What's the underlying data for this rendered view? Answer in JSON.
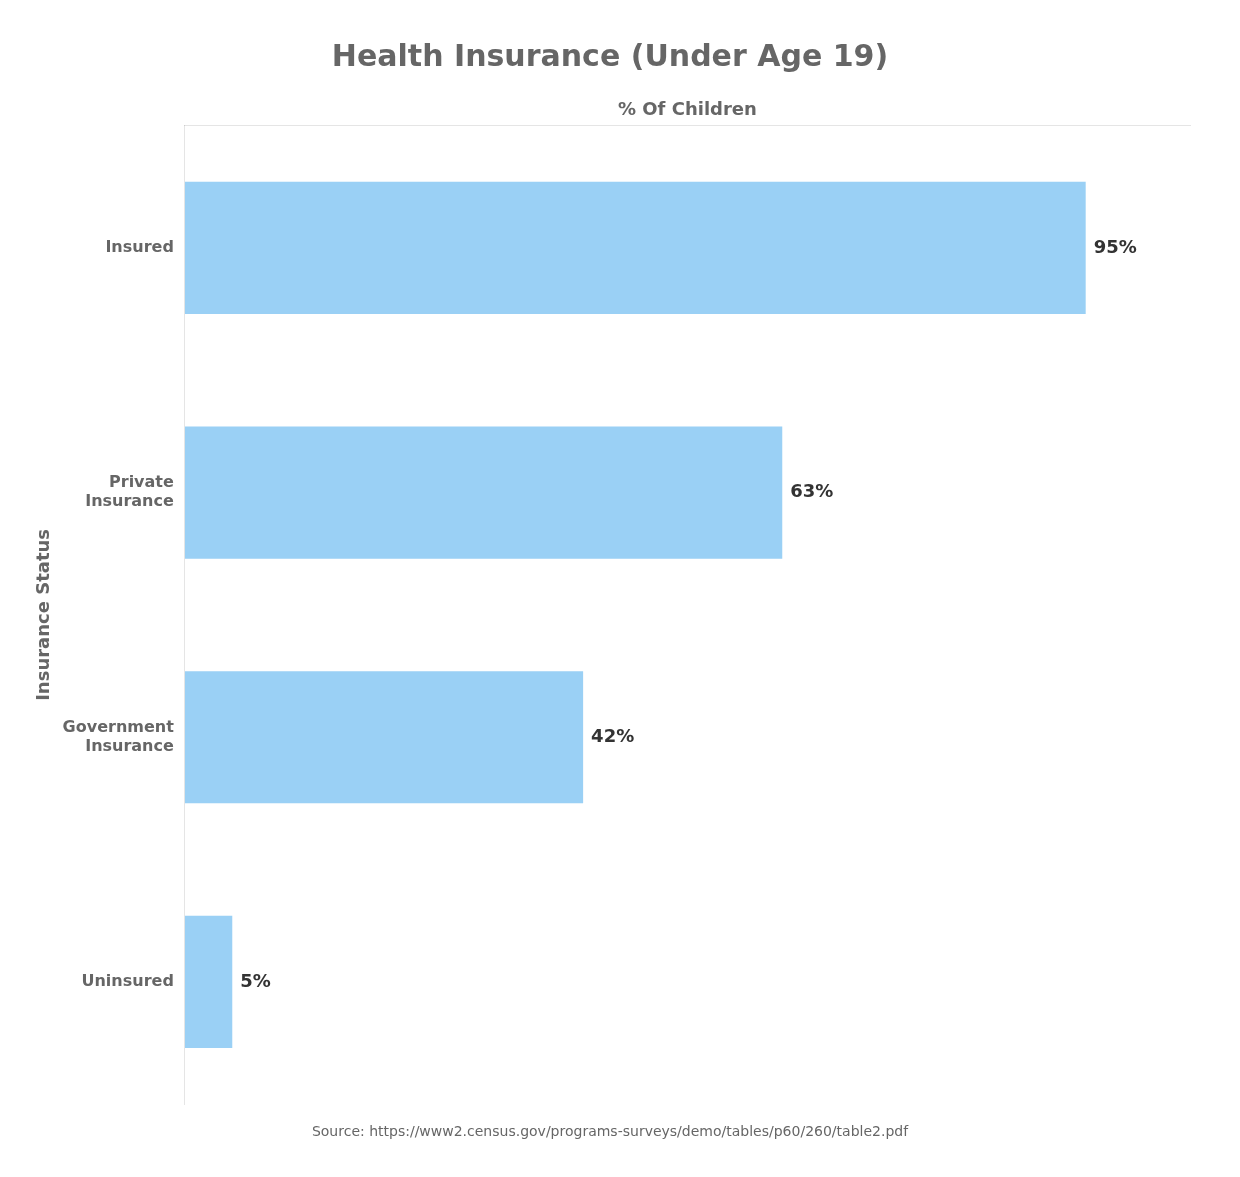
{
  "chart_data": {
    "type": "bar",
    "orientation": "horizontal",
    "title": "Health Insurance (Under Age 19)",
    "xlabel": "% Of Children",
    "ylabel": "Insurance Status",
    "annotations": [
      "Source: https://www2.census.gov/programs-surveys/demo/tables/p60/260/table2.pdf"
    ],
    "categories": [
      "Insured",
      "Private\nInsurance",
      "Government\nInsurance",
      "Uninsured"
    ],
    "values": [
      95,
      63,
      42,
      5
    ],
    "value_labels": [
      "95%",
      "63%",
      "42%",
      "5%"
    ],
    "data_labels": true,
    "xlim": [
      0,
      106
    ],
    "tick_labels": "y",
    "grid": false
  }
}
